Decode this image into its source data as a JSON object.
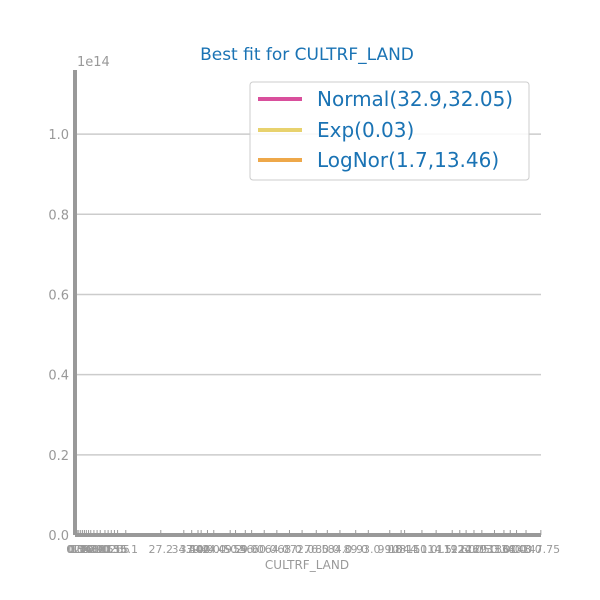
{
  "chart_data": {
    "type": "line",
    "title": "Best fit for CULTRF_LAND",
    "xlabel": "CULTRF_LAND",
    "ylabel": "",
    "y_offset_label": "1e14",
    "ylim": [
      0,
      1.16
    ],
    "yticks": [
      0.0,
      0.2,
      0.4,
      0.6,
      0.8,
      1.0
    ],
    "ytick_labels": [
      "0.0",
      "0.2",
      "0.4",
      "0.6",
      "0.8",
      "1.0"
    ],
    "xlim": [
      0,
      147.75
    ],
    "xticks": [
      0.0,
      0.3,
      0.7,
      1.2,
      1.8,
      2.4,
      3.0,
      3.6,
      4.3,
      5.0,
      6.0,
      7.0,
      8.0,
      9.5,
      10.5,
      11.5,
      12.5,
      13.5,
      16.1,
      27.2,
      34.5,
      37.0,
      39.0,
      40.0,
      42.0,
      44.0,
      49.2,
      50.9,
      54.0,
      56.0,
      60.0,
      64.0,
      68.0,
      72.0,
      76.5,
      80.0,
      84.0,
      89.0,
      93.0,
      99.8,
      103.4,
      104.5,
      110.0,
      114.5,
      119.6,
      122.0,
      124.0,
      126.5,
      129.0,
      133.0,
      136.0,
      138.0,
      140.0,
      143.0,
      147.7
    ],
    "xtick_labels": [
      "0.0",
      "0.3",
      "0.7",
      "1.2",
      "1.8",
      "2.4",
      "3.0",
      "3.6",
      "4.3",
      "5.0",
      "6.0",
      "7.0",
      "8.0",
      "9.5",
      "10.5",
      "11.5",
      "12.5",
      "13.5",
      "16.1",
      "27.2",
      "34.5",
      "37.0",
      "39.0",
      "40.0",
      "42.0",
      "44.0",
      "49.2",
      "50.9",
      "54.0",
      "56.0",
      "60.0",
      "64.0",
      "68.0",
      "72.0",
      "76.5",
      "80.0",
      "84.0",
      "89.0",
      "93.0",
      "99.8",
      "103.4",
      "104.5",
      "110.0",
      "114.5",
      "119.6",
      "122.0",
      "124.0",
      "126.5",
      "129.0",
      "133.0",
      "136.0",
      "138.0",
      "140.0",
      "143.0",
      "147.75"
    ],
    "grid": "horizontal",
    "legend_position": "top-right",
    "series": [
      {
        "name": "Normal(32.9,32.05)",
        "color": "#d94f9c",
        "x": [
          0,
          147.75
        ],
        "y": [
          0,
          0
        ]
      },
      {
        "name": "Exp(0.03)",
        "color": "#e8d26e",
        "x": [
          0,
          147.75
        ],
        "y": [
          0,
          0
        ]
      },
      {
        "name": "LogNor(1.7,13.46)",
        "color": "#eea84a",
        "x": [
          0,
          147.75
        ],
        "y": [
          0,
          0
        ]
      }
    ],
    "colors": {
      "axis": "#999999",
      "grid": "#cccccc",
      "text": "#1a73b4"
    }
  }
}
